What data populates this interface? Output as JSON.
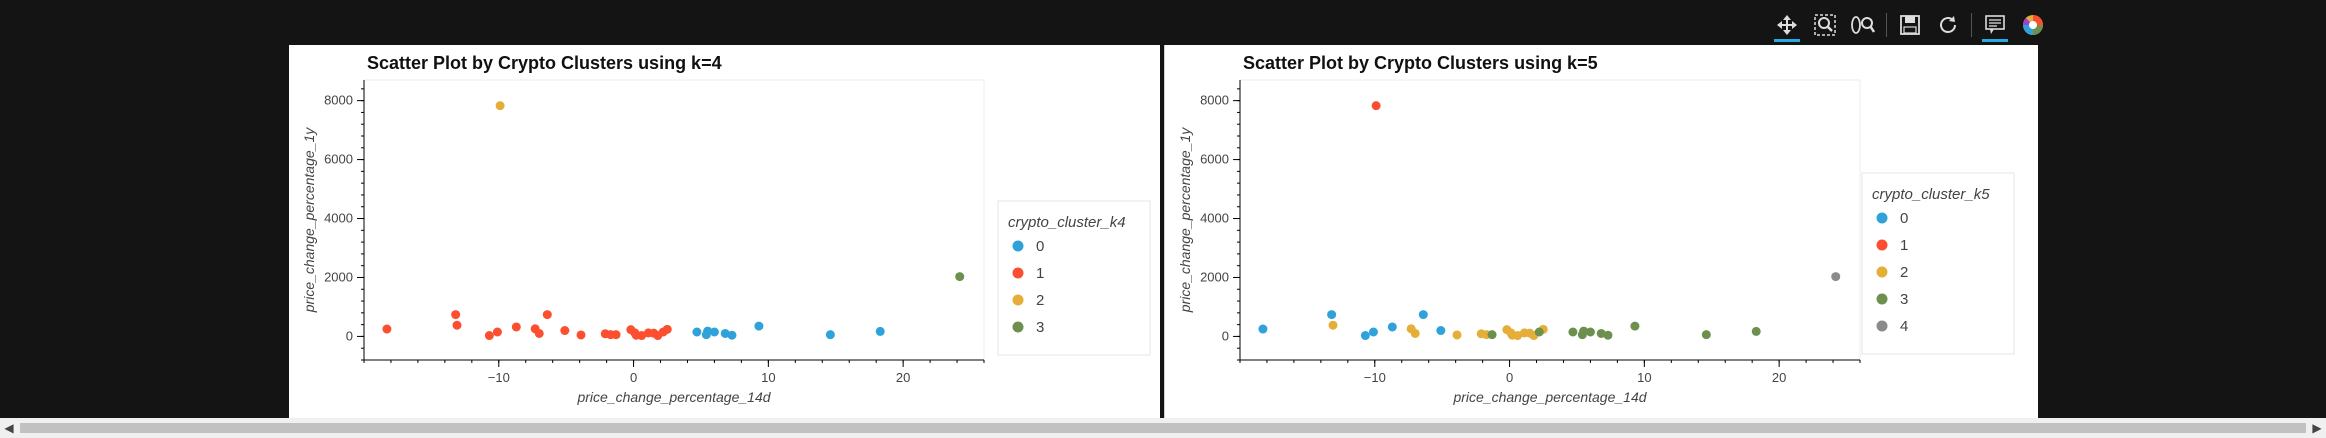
{
  "toolbar": {
    "tools": [
      {
        "icon": "pan-icon",
        "active": true
      },
      {
        "icon": "box-zoom-icon",
        "active": false
      },
      {
        "icon": "wheel-zoom-icon",
        "active": false
      },
      {
        "icon": "save-icon",
        "active": false
      },
      {
        "icon": "reset-icon",
        "active": false
      },
      {
        "icon": "hover-icon",
        "active": true
      },
      {
        "icon": "bokeh-logo-icon",
        "active": false
      }
    ]
  },
  "colors": [
    "#30a2da",
    "#fc4f30",
    "#e5ae38",
    "#6d904f",
    "#8b8b8b"
  ],
  "chart_data": [
    {
      "type": "scatter",
      "title": "Scatter Plot by Crypto Clusters using k=4",
      "xlabel": "price_change_percentage_14d",
      "ylabel": "price_change_percentage_1y",
      "xlim": [
        -20,
        26
      ],
      "ylim": [
        -800,
        8700
      ],
      "xticks": [
        -10,
        0,
        10,
        20
      ],
      "yticks": [
        0,
        2000,
        4000,
        6000,
        8000
      ],
      "legend": {
        "title": "crypto_cluster_k4",
        "entries": [
          "0",
          "1",
          "2",
          "3"
        ]
      },
      "series": [
        {
          "name": "0",
          "points": [
            [
              4.7,
              150
            ],
            [
              5.5,
              180
            ],
            [
              6.0,
              150
            ],
            [
              6.8,
              100
            ],
            [
              7.3,
              40
            ],
            [
              5.4,
              60
            ],
            [
              9.3,
              350
            ],
            [
              14.6,
              60
            ],
            [
              18.3,
              170
            ]
          ]
        },
        {
          "name": "1",
          "points": [
            [
              -18.3,
              250
            ],
            [
              -13.2,
              740
            ],
            [
              -13.1,
              380
            ],
            [
              -10.7,
              30
            ],
            [
              -10.1,
              150
            ],
            [
              -8.7,
              320
            ],
            [
              -7.3,
              260
            ],
            [
              -7.0,
              100
            ],
            [
              -6.4,
              740
            ],
            [
              -5.1,
              200
            ],
            [
              -3.9,
              50
            ],
            [
              -2.1,
              90
            ],
            [
              -1.7,
              60
            ],
            [
              -1.3,
              60
            ],
            [
              -0.2,
              230
            ],
            [
              0.1,
              120
            ],
            [
              0.2,
              40
            ],
            [
              0.6,
              30
            ],
            [
              1.1,
              120
            ],
            [
              1.5,
              110
            ],
            [
              1.8,
              30
            ],
            [
              2.2,
              150
            ],
            [
              2.5,
              240
            ]
          ]
        },
        {
          "name": "2",
          "points": [
            [
              -9.9,
              7830
            ]
          ]
        },
        {
          "name": "3",
          "points": [
            [
              24.2,
              2030
            ]
          ]
        }
      ]
    },
    {
      "type": "scatter",
      "title": "Scatter Plot by Crypto Clusters using k=5",
      "xlabel": "price_change_percentage_14d",
      "ylabel": "price_change_percentage_1y",
      "xlim": [
        -20,
        26
      ],
      "ylim": [
        -800,
        8700
      ],
      "xticks": [
        -10,
        0,
        10,
        20
      ],
      "yticks": [
        0,
        2000,
        4000,
        6000,
        8000
      ],
      "legend": {
        "title": "crypto_cluster_k5",
        "entries": [
          "0",
          "1",
          "2",
          "3",
          "4"
        ]
      },
      "series": [
        {
          "name": "0",
          "points": [
            [
              -18.3,
              250
            ],
            [
              -13.2,
              740
            ],
            [
              -10.7,
              30
            ],
            [
              -10.1,
              150
            ],
            [
              -8.7,
              320
            ],
            [
              -6.4,
              740
            ],
            [
              -5.1,
              200
            ]
          ]
        },
        {
          "name": "1",
          "points": [
            [
              -9.9,
              7830
            ]
          ]
        },
        {
          "name": "2",
          "points": [
            [
              -13.1,
              380
            ],
            [
              -7.3,
              260
            ],
            [
              -7.0,
              100
            ],
            [
              -3.9,
              50
            ],
            [
              -2.1,
              90
            ],
            [
              -1.7,
              60
            ],
            [
              -0.2,
              230
            ],
            [
              0.1,
              120
            ],
            [
              0.2,
              40
            ],
            [
              0.6,
              30
            ],
            [
              1.1,
              120
            ],
            [
              1.5,
              110
            ],
            [
              1.8,
              30
            ],
            [
              2.5,
              240
            ]
          ]
        },
        {
          "name": "3",
          "points": [
            [
              -1.3,
              60
            ],
            [
              2.2,
              150
            ],
            [
              4.7,
              150
            ],
            [
              5.4,
              60
            ],
            [
              5.5,
              180
            ],
            [
              6.0,
              150
            ],
            [
              6.8,
              100
            ],
            [
              7.3,
              40
            ],
            [
              9.3,
              350
            ],
            [
              14.6,
              60
            ],
            [
              18.3,
              170
            ]
          ]
        },
        {
          "name": "4",
          "points": [
            [
              24.2,
              2030
            ]
          ]
        }
      ]
    }
  ]
}
